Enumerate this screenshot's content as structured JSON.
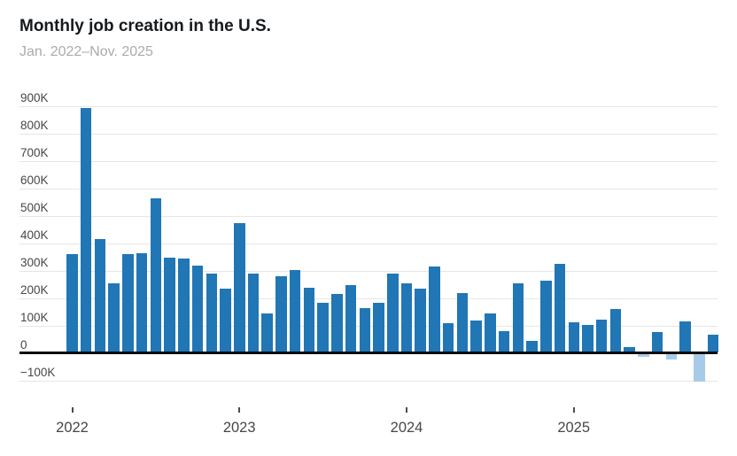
{
  "header": {
    "title": "Monthly job creation in the U.S.",
    "subtitle": "Jan. 2022–Nov. 2025"
  },
  "chart_data": {
    "type": "bar",
    "title": "Monthly job creation in the U.S.",
    "subtitle": "Jan. 2022–Nov. 2025",
    "unit": "jobs added per month, in thousands",
    "months": [
      "Jan. 2022",
      "Feb. 2022",
      "Mar. 2022",
      "Apr. 2022",
      "May 2022",
      "Jun. 2022",
      "Jul. 2022",
      "Aug. 2022",
      "Sep. 2022",
      "Oct. 2022",
      "Nov. 2022",
      "Dec. 2022",
      "Jan. 2023",
      "Feb. 2023",
      "Mar. 2023",
      "Apr. 2023",
      "May 2023",
      "Jun. 2023",
      "Jul. 2023",
      "Aug. 2023",
      "Sep. 2023",
      "Oct. 2023",
      "Nov. 2023",
      "Dec. 2023",
      "Jan. 2024",
      "Feb. 2024",
      "Mar. 2024",
      "Apr. 2024",
      "May 2024",
      "Jun. 2024",
      "Jul. 2024",
      "Aug. 2024",
      "Sep. 2024",
      "Oct. 2024",
      "Nov. 2024",
      "Dec. 2024",
      "Jan. 2025",
      "Feb. 2025",
      "Mar. 2025",
      "Apr. 2025",
      "May 2025",
      "Jun. 2025",
      "Jul. 2025",
      "Aug. 2025",
      "Sep. 2025",
      "Oct. 2025",
      "Nov. 2025"
    ],
    "values_thousands": [
      355,
      890,
      410,
      250,
      355,
      360,
      560,
      345,
      340,
      315,
      285,
      230,
      470,
      285,
      140,
      275,
      300,
      235,
      180,
      210,
      245,
      160,
      180,
      285,
      250,
      230,
      310,
      105,
      215,
      115,
      140,
      75,
      250,
      40,
      260,
      320,
      108,
      100,
      117,
      155,
      19,
      -15,
      72,
      -25,
      110,
      -105,
      64
    ],
    "y_axis": {
      "ticks": [
        {
          "value": 900,
          "label": "900K"
        },
        {
          "value": 800,
          "label": "800K"
        },
        {
          "value": 700,
          "label": "700K"
        },
        {
          "value": 600,
          "label": "600K"
        },
        {
          "value": 500,
          "label": "500K"
        },
        {
          "value": 400,
          "label": "400K"
        },
        {
          "value": 300,
          "label": "300K"
        },
        {
          "value": 200,
          "label": "200K"
        },
        {
          "value": 100,
          "label": "100K"
        },
        {
          "value": 0,
          "label": "0"
        },
        {
          "value": -100,
          "label": "−100K"
        }
      ],
      "ylim_thousands": [
        -100,
        900
      ],
      "grid": true
    },
    "x_axis": {
      "year_ticks": [
        {
          "label": "2022",
          "month_index": 0
        },
        {
          "label": "2023",
          "month_index": 12
        },
        {
          "label": "2024",
          "month_index": 24
        },
        {
          "label": "2025",
          "month_index": 36
        }
      ]
    },
    "legend": "none",
    "colors": {
      "positive_bar": "#2176B5",
      "negative_bar": "#A6CBE8",
      "gridline": "#e6e6e6",
      "zero_line": "#0c0c0c",
      "title_text": "#16191d",
      "subtitle_text": "#a9abad",
      "axis_text": "#474747"
    }
  }
}
